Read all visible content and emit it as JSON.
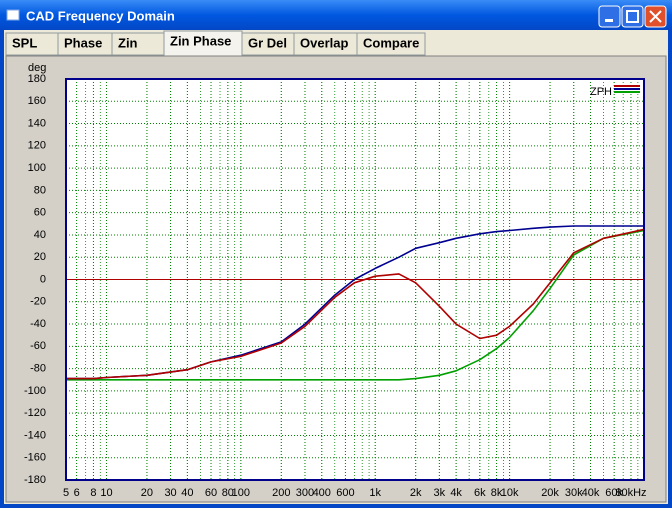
{
  "window": {
    "title": "CAD Frequency Domain"
  },
  "tabs": [
    "SPL",
    "Phase",
    "Zin",
    "Zin Phase",
    "Gr Del",
    "Overlap",
    "Compare"
  ],
  "selected_tab": 3,
  "chart_data": {
    "type": "line",
    "y_label": "deg",
    "log_x": true,
    "grid": true,
    "minor_grid": true,
    "legend": {
      "label": "ZPH",
      "corner": "top-right"
    },
    "reference_line": {
      "value": 0,
      "color": "#b00000"
    },
    "xlim": [
      5,
      100000
    ],
    "ylim": [
      -180,
      180
    ],
    "xticks": [
      5,
      6,
      8,
      10,
      20,
      30,
      40,
      60,
      80,
      100,
      200,
      300,
      400,
      600,
      {
        "value": 1000,
        "label": "1k"
      },
      {
        "value": 2000,
        "label": "2k"
      },
      {
        "value": 3000,
        "label": "3k"
      },
      {
        "value": 4000,
        "label": "4k"
      },
      {
        "value": 6000,
        "label": "6k"
      },
      {
        "value": 8000,
        "label": "8k"
      },
      {
        "value": 10000,
        "label": "10k"
      },
      {
        "value": 20000,
        "label": "20k"
      },
      {
        "value": 30000,
        "label": "30k"
      },
      {
        "value": 40000,
        "label": "40k"
      },
      {
        "value": 60000,
        "label": "60k"
      },
      {
        "value": 80000,
        "label": "80kHz"
      }
    ],
    "yticks": [
      -180,
      -160,
      -140,
      -120,
      -100,
      -80,
      -60,
      -40,
      -20,
      0,
      20,
      40,
      60,
      80,
      100,
      120,
      140,
      160,
      180
    ],
    "x": [
      5,
      8,
      10,
      20,
      40,
      60,
      100,
      200,
      300,
      500,
      700,
      1000,
      1500,
      2000,
      3000,
      4000,
      6000,
      8000,
      10000,
      15000,
      20000,
      30000,
      50000,
      100000
    ],
    "series": [
      {
        "color": "#00a000",
        "values": [
          -90,
          -90,
          -90,
          -90,
          -90,
          -90,
          -90,
          -90,
          -90,
          -90,
          -90,
          -90,
          -90,
          -89,
          -86,
          -82,
          -72,
          -62,
          -52,
          -28,
          -8,
          22,
          37,
          44
        ]
      },
      {
        "color": "#000090",
        "values": [
          -89,
          -89,
          -88,
          -86,
          -81,
          -74,
          -68,
          -56,
          -40,
          -14,
          0,
          10,
          20,
          28,
          33,
          37,
          41,
          43,
          44,
          46,
          47,
          48,
          48,
          48
        ]
      },
      {
        "color": "#b00000",
        "values": [
          -89,
          -89,
          -88,
          -86,
          -81,
          -74,
          -69,
          -57,
          -42,
          -16,
          -3,
          3,
          5,
          -3,
          -24,
          -40,
          -53,
          -50,
          -42,
          -22,
          -3,
          24,
          37,
          45
        ]
      }
    ]
  }
}
